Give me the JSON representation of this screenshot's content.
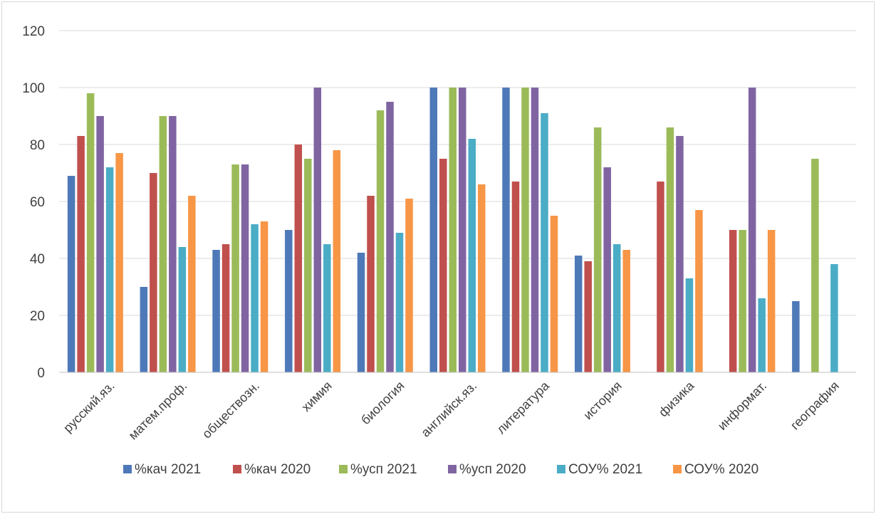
{
  "chart_data": {
    "type": "bar",
    "categories": [
      "русский.яз.",
      "матем.проф.",
      "обществозн.",
      "химия",
      "биология",
      "английск.яз.",
      "литература",
      "история",
      "физика",
      "информат.",
      "география"
    ],
    "series": [
      {
        "name": "%кач 2021",
        "color": "#4e79b8",
        "values": [
          69,
          30,
          43,
          50,
          42,
          100,
          100,
          41,
          null,
          null,
          25
        ]
      },
      {
        "name": "%кач 2020",
        "color": "#c0504d",
        "values": [
          83,
          70,
          45,
          80,
          62,
          75,
          67,
          39,
          67,
          50,
          null
        ]
      },
      {
        "name": "%усп 2021",
        "color": "#9bbb59",
        "values": [
          98,
          90,
          73,
          75,
          92,
          100,
          100,
          86,
          86,
          50,
          75
        ]
      },
      {
        "name": "%усп 2020",
        "color": "#8064a2",
        "values": [
          90,
          90,
          73,
          100,
          95,
          100,
          100,
          72,
          83,
          100,
          null
        ]
      },
      {
        "name": "СОУ% 2021",
        "color": "#4bacc6",
        "values": [
          72,
          44,
          52,
          45,
          49,
          82,
          91,
          45,
          33,
          26,
          38
        ]
      },
      {
        "name": "СОУ% 2020",
        "color": "#f79646",
        "values": [
          77,
          62,
          53,
          78,
          61,
          66,
          55,
          43,
          57,
          50,
          null
        ]
      }
    ],
    "y_ticks": [
      "0",
      "20",
      "40",
      "60",
      "80",
      "100",
      "120"
    ],
    "ylim": [
      0,
      120
    ],
    "grid": true,
    "legend": "bottom"
  }
}
